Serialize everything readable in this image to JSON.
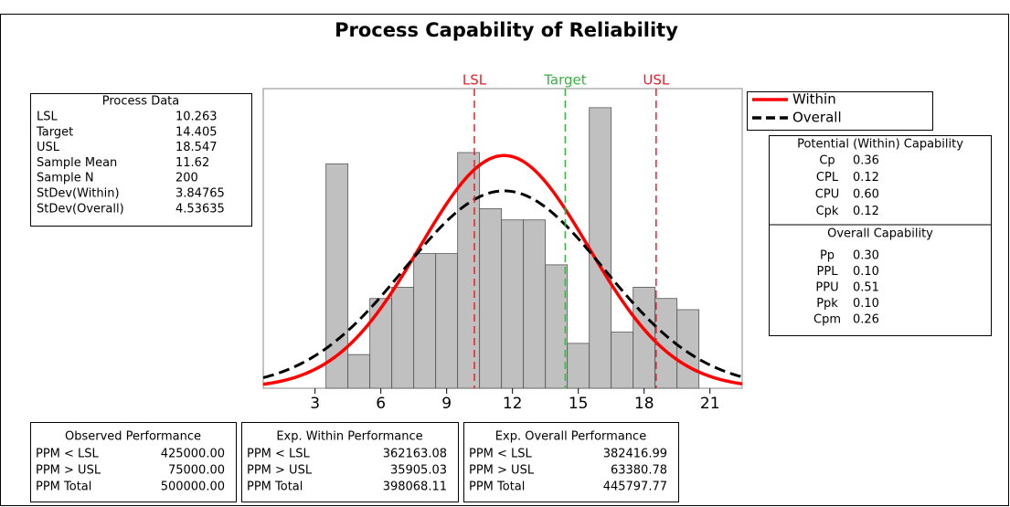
{
  "chart_data": {
    "type": "histogram",
    "title": "Process Capability of Reliability",
    "bins": [
      3.5,
      4.5,
      5.5,
      6.5,
      7.5,
      8.5,
      9.5,
      10.5,
      11.5,
      12.5,
      13.5,
      14.5,
      15.5,
      16.5,
      17.5,
      18.5,
      19.5,
      20.5
    ],
    "values": [
      20,
      3,
      8,
      9,
      12,
      12,
      21,
      16,
      15,
      15,
      11,
      4,
      25,
      5,
      9,
      8,
      7
    ],
    "color": "#c0c0c0",
    "xlim": [
      0.64,
      22.47
    ],
    "xticks": [
      3,
      6,
      9,
      12,
      15,
      18,
      21
    ],
    "ylim": [
      0,
      26.7
    ],
    "spec_lines": [
      {
        "label": "LSL",
        "value": 10.263,
        "color": "#e8202a"
      },
      {
        "label": "Target",
        "value": 14.405,
        "color": "#3cb043"
      },
      {
        "label": "USL",
        "value": 18.547,
        "color": "#e8202a"
      }
    ],
    "curves": [
      {
        "name": "Within",
        "color": "#ff0000",
        "style": "solid"
      },
      {
        "name": "Overall",
        "color": "#000000",
        "style": "dashed"
      }
    ],
    "process_data": {
      "title": "Process Data",
      "rows": [
        [
          "LSL",
          10.263
        ],
        [
          "Target",
          14.405
        ],
        [
          "USL",
          18.547
        ],
        [
          "Sample Mean",
          11.62
        ],
        [
          "Sample N",
          200
        ],
        [
          "StDev(Within)",
          3.84765
        ],
        [
          "StDev(Overall)",
          4.53635
        ]
      ]
    },
    "potential_capability": {
      "title": "Potential (Within) Capability",
      "rows": [
        [
          "Cp",
          "0.36"
        ],
        [
          "CPL",
          "0.12"
        ],
        [
          "CPU",
          "0.60"
        ],
        [
          "Cpk",
          "0.12"
        ]
      ]
    },
    "overall_capability": {
      "title": "Overall Capability",
      "rows": [
        [
          "Pp",
          "0.30"
        ],
        [
          "PPL",
          "0.10"
        ],
        [
          "PPU",
          "0.51"
        ],
        [
          "Ppk",
          "0.10"
        ],
        [
          "Cpm",
          "0.26"
        ]
      ]
    },
    "performance": [
      {
        "title": "Observed Performance",
        "rows": [
          [
            "PPM < LSL",
            "425000.00"
          ],
          [
            "PPM > USL",
            "75000.00"
          ],
          [
            "PPM Total",
            "500000.00"
          ]
        ]
      },
      {
        "title": "Exp. Within Performance",
        "rows": [
          [
            "PPM < LSL",
            "362163.08"
          ],
          [
            "PPM > USL",
            "35905.03"
          ],
          [
            "PPM Total",
            "398068.11"
          ]
        ]
      },
      {
        "title": "Exp. Overall Performance",
        "rows": [
          [
            "PPM < LSL",
            "382416.99"
          ],
          [
            "PPM > USL",
            "63380.78"
          ],
          [
            "PPM Total",
            "445797.77"
          ]
        ]
      }
    ]
  }
}
